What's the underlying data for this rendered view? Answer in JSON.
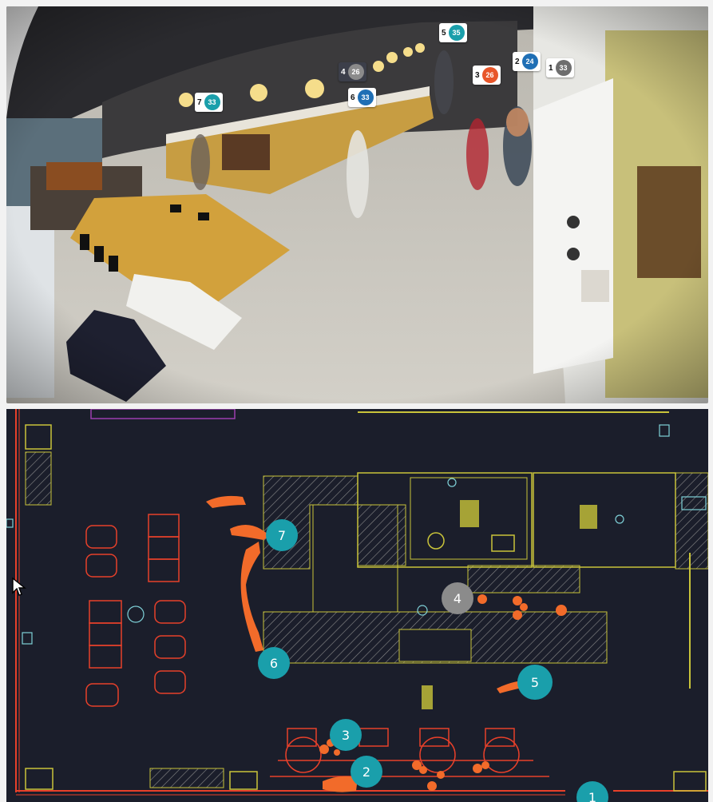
{
  "camera": {
    "tags": [
      {
        "id": "7",
        "count": "33",
        "color": "#1a9fab",
        "style": "light"
      },
      {
        "id": "4",
        "count": "26",
        "color": "#8b8b8b",
        "style": "dark"
      },
      {
        "id": "6",
        "count": "33",
        "color": "#1f6fb5",
        "style": "light"
      },
      {
        "id": "5",
        "count": "35",
        "color": "#1a9fab",
        "style": "light"
      },
      {
        "id": "3",
        "count": "26",
        "color": "#e8562a",
        "style": "light"
      },
      {
        "id": "2",
        "count": "24",
        "color": "#1f6fb5",
        "style": "light"
      },
      {
        "id": "1",
        "count": "33",
        "color": "#6d6d6d",
        "style": "light"
      }
    ]
  },
  "floorplan": {
    "markers": [
      {
        "label": "7",
        "color": "#1a9fab"
      },
      {
        "label": "4",
        "color": "#8b8b8b"
      },
      {
        "label": "6",
        "color": "#1a9fab"
      },
      {
        "label": "5",
        "color": "#1a9fab"
      },
      {
        "label": "3",
        "color": "#1a9fab"
      },
      {
        "label": "2",
        "color": "#1a9fab"
      },
      {
        "label": "1",
        "color": "#1a9fab"
      }
    ],
    "trail_color": "#f26b2a",
    "wall_color": "#e8402a",
    "counter_color": "#c9c43a",
    "background": "#1b1e2b"
  }
}
